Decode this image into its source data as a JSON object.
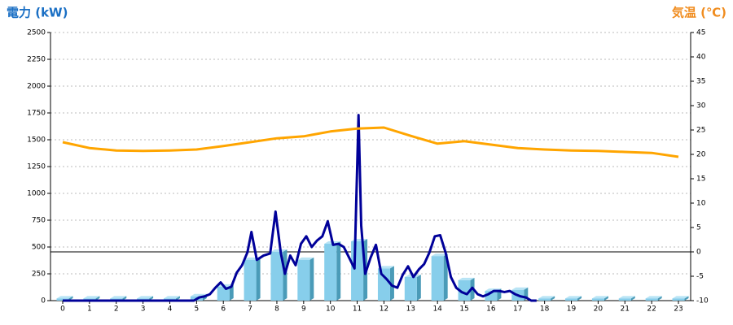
{
  "chart_data": {
    "type": "combo",
    "y_title": "電力 (kW)",
    "y2_title": "気温 (℃)",
    "categories": [
      0,
      1,
      2,
      3,
      4,
      5,
      6,
      7,
      8,
      9,
      10,
      11,
      12,
      13,
      14,
      15,
      16,
      17,
      18,
      19,
      20,
      21,
      22,
      23
    ],
    "ylim": [
      0,
      2500
    ],
    "yticks": [
      0,
      250,
      500,
      750,
      1000,
      1250,
      1500,
      1750,
      2000,
      2250,
      2500
    ],
    "y2lim": [
      -10,
      45
    ],
    "y2ticks": [
      -10,
      -5,
      0,
      5,
      10,
      15,
      20,
      25,
      30,
      35,
      40,
      45
    ],
    "grid": true,
    "y2_zero_line": true,
    "series": [
      {
        "type": "bar",
        "color": "#87ceeb",
        "values": [
          20,
          20,
          20,
          20,
          20,
          40,
          130,
          380,
          455,
          380,
          530,
          553,
          300,
          220,
          415,
          190,
          90,
          100,
          20,
          20,
          20,
          20,
          20,
          20
        ]
      },
      {
        "type": "line",
        "color": "#000099",
        "x": [
          0,
          4.9,
          5.1,
          5.3,
          5.5,
          5.7,
          5.9,
          6.1,
          6.3,
          6.5,
          6.7,
          6.9,
          7.05,
          7.25,
          7.5,
          7.75,
          7.95,
          8.15,
          8.3,
          8.5,
          8.7,
          8.9,
          9.1,
          9.3,
          9.5,
          9.7,
          9.9,
          10.1,
          10.3,
          10.5,
          10.7,
          10.9,
          11.05,
          11.15,
          11.3,
          11.5,
          11.7,
          11.9,
          12.1,
          12.3,
          12.5,
          12.7,
          12.9,
          13.1,
          13.3,
          13.5,
          13.7,
          13.9,
          14.1,
          14.3,
          14.5,
          14.7,
          14.9,
          15.1,
          15.3,
          15.5,
          15.7,
          15.9,
          16.1,
          16.3,
          16.5,
          16.7,
          16.9,
          17.1,
          17.3,
          17.5,
          17.7
        ],
        "values": [
          0,
          0,
          30,
          40,
          60,
          120,
          170,
          110,
          130,
          260,
          330,
          450,
          640,
          380,
          420,
          440,
          830,
          440,
          250,
          420,
          330,
          530,
          600,
          500,
          560,
          600,
          740,
          520,
          530,
          500,
          400,
          300,
          1730,
          700,
          250,
          400,
          520,
          250,
          200,
          140,
          120,
          240,
          320,
          220,
          290,
          340,
          450,
          600,
          610,
          450,
          220,
          120,
          80,
          60,
          120,
          60,
          40,
          60,
          90,
          90,
          80,
          90,
          60,
          40,
          30,
          0,
          0
        ]
      },
      {
        "type": "line",
        "axis": "y2",
        "color": "#ffa500",
        "values": [
          22.5,
          21.3,
          20.8,
          20.7,
          20.8,
          21,
          21.7,
          22.5,
          23.3,
          23.7,
          24.7,
          25.3,
          25.5,
          23.8,
          22.2,
          22.7,
          22,
          21.3,
          21,
          20.8,
          20.7,
          20.5,
          20.3,
          19.5
        ]
      }
    ]
  }
}
